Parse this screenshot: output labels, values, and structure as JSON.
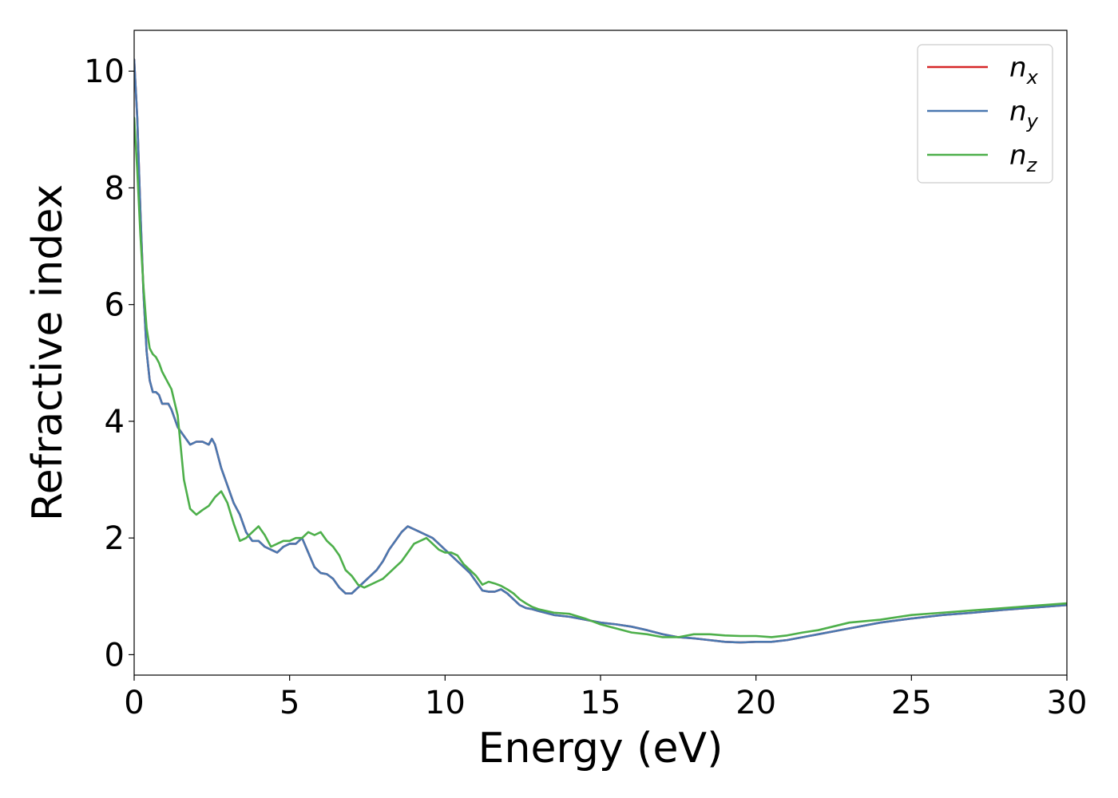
{
  "chart_data": {
    "type": "line",
    "xlabel": "Energy (eV)",
    "ylabel": "Refractive index",
    "xlim": [
      0,
      30
    ],
    "ylim": [
      -0.35,
      10.7
    ],
    "x_ticks": [
      0,
      5,
      10,
      15,
      20,
      25,
      30
    ],
    "y_ticks": [
      0,
      2,
      4,
      6,
      8,
      10
    ],
    "grid": false,
    "legend_position": "top-right",
    "series": [
      {
        "name": "n",
        "subscript": "x",
        "color": "#d62728",
        "x": [
          0,
          0.1,
          0.2,
          0.3,
          0.4,
          0.5,
          0.6,
          0.7,
          0.8,
          0.9,
          1.0,
          1.1,
          1.2,
          1.4,
          1.6,
          1.8,
          2.0,
          2.2,
          2.4,
          2.5,
          2.6,
          2.8,
          3.0,
          3.2,
          3.4,
          3.6,
          3.8,
          4.0,
          4.2,
          4.4,
          4.6,
          4.8,
          5.0,
          5.2,
          5.4,
          5.6,
          5.8,
          6.0,
          6.2,
          6.4,
          6.6,
          6.8,
          7.0,
          7.2,
          7.4,
          7.6,
          7.8,
          8.0,
          8.2,
          8.4,
          8.6,
          8.8,
          9.0,
          9.2,
          9.4,
          9.6,
          9.8,
          10.0,
          10.2,
          10.4,
          10.6,
          10.8,
          11.0,
          11.2,
          11.4,
          11.6,
          11.8,
          12.0,
          12.2,
          12.4,
          12.6,
          12.8,
          13.0,
          13.5,
          14.0,
          14.5,
          15.0,
          15.5,
          16.0,
          16.5,
          17.0,
          17.5,
          18.0,
          18.5,
          19.0,
          19.5,
          20.0,
          20.5,
          21.0,
          21.5,
          22.0,
          23.0,
          24.0,
          25.0,
          26.0,
          27.0,
          28.0,
          29.0,
          30.0
        ],
        "y": [
          10.2,
          9.2,
          7.6,
          6.2,
          5.2,
          4.7,
          4.5,
          4.5,
          4.45,
          4.3,
          4.3,
          4.3,
          4.2,
          3.9,
          3.75,
          3.6,
          3.65,
          3.65,
          3.6,
          3.7,
          3.6,
          3.2,
          2.9,
          2.6,
          2.4,
          2.1,
          1.95,
          1.95,
          1.85,
          1.8,
          1.75,
          1.85,
          1.9,
          1.9,
          2.0,
          1.75,
          1.5,
          1.4,
          1.38,
          1.3,
          1.15,
          1.05,
          1.05,
          1.15,
          1.25,
          1.35,
          1.45,
          1.6,
          1.8,
          1.95,
          2.1,
          2.2,
          2.15,
          2.1,
          2.05,
          2.0,
          1.9,
          1.8,
          1.7,
          1.6,
          1.5,
          1.4,
          1.25,
          1.1,
          1.08,
          1.08,
          1.12,
          1.05,
          0.95,
          0.85,
          0.8,
          0.78,
          0.75,
          0.68,
          0.65,
          0.6,
          0.55,
          0.52,
          0.48,
          0.42,
          0.35,
          0.3,
          0.28,
          0.25,
          0.22,
          0.21,
          0.22,
          0.22,
          0.25,
          0.3,
          0.35,
          0.45,
          0.55,
          0.62,
          0.68,
          0.72,
          0.77,
          0.81,
          0.85
        ]
      },
      {
        "name": "n",
        "subscript": "y",
        "color": "#4a78b0",
        "x": [
          0,
          0.1,
          0.2,
          0.3,
          0.4,
          0.5,
          0.6,
          0.7,
          0.8,
          0.9,
          1.0,
          1.1,
          1.2,
          1.4,
          1.6,
          1.8,
          2.0,
          2.2,
          2.4,
          2.5,
          2.6,
          2.8,
          3.0,
          3.2,
          3.4,
          3.6,
          3.8,
          4.0,
          4.2,
          4.4,
          4.6,
          4.8,
          5.0,
          5.2,
          5.4,
          5.6,
          5.8,
          6.0,
          6.2,
          6.4,
          6.6,
          6.8,
          7.0,
          7.2,
          7.4,
          7.6,
          7.8,
          8.0,
          8.2,
          8.4,
          8.6,
          8.8,
          9.0,
          9.2,
          9.4,
          9.6,
          9.8,
          10.0,
          10.2,
          10.4,
          10.6,
          10.8,
          11.0,
          11.2,
          11.4,
          11.6,
          11.8,
          12.0,
          12.2,
          12.4,
          12.6,
          12.8,
          13.0,
          13.5,
          14.0,
          14.5,
          15.0,
          15.5,
          16.0,
          16.5,
          17.0,
          17.5,
          18.0,
          18.5,
          19.0,
          19.5,
          20.0,
          20.5,
          21.0,
          21.5,
          22.0,
          23.0,
          24.0,
          25.0,
          26.0,
          27.0,
          28.0,
          29.0,
          30.0
        ],
        "y": [
          10.2,
          9.2,
          7.6,
          6.2,
          5.2,
          4.7,
          4.5,
          4.5,
          4.45,
          4.3,
          4.3,
          4.3,
          4.2,
          3.9,
          3.75,
          3.6,
          3.65,
          3.65,
          3.6,
          3.7,
          3.6,
          3.2,
          2.9,
          2.6,
          2.4,
          2.1,
          1.95,
          1.95,
          1.85,
          1.8,
          1.75,
          1.85,
          1.9,
          1.9,
          2.0,
          1.75,
          1.5,
          1.4,
          1.38,
          1.3,
          1.15,
          1.05,
          1.05,
          1.15,
          1.25,
          1.35,
          1.45,
          1.6,
          1.8,
          1.95,
          2.1,
          2.2,
          2.15,
          2.1,
          2.05,
          2.0,
          1.9,
          1.8,
          1.7,
          1.6,
          1.5,
          1.4,
          1.25,
          1.1,
          1.08,
          1.08,
          1.12,
          1.05,
          0.95,
          0.85,
          0.8,
          0.78,
          0.75,
          0.68,
          0.65,
          0.6,
          0.55,
          0.52,
          0.48,
          0.42,
          0.35,
          0.3,
          0.28,
          0.25,
          0.22,
          0.21,
          0.22,
          0.22,
          0.25,
          0.3,
          0.35,
          0.45,
          0.55,
          0.62,
          0.68,
          0.72,
          0.77,
          0.81,
          0.85
        ]
      },
      {
        "name": "n",
        "subscript": "z",
        "color": "#4daf4a",
        "x": [
          0,
          0.1,
          0.2,
          0.3,
          0.4,
          0.5,
          0.6,
          0.7,
          0.8,
          0.9,
          1.0,
          1.2,
          1.4,
          1.6,
          1.8,
          2.0,
          2.2,
          2.4,
          2.6,
          2.8,
          3.0,
          3.2,
          3.4,
          3.6,
          3.8,
          4.0,
          4.2,
          4.4,
          4.6,
          4.8,
          5.0,
          5.2,
          5.4,
          5.6,
          5.8,
          6.0,
          6.2,
          6.4,
          6.6,
          6.8,
          7.0,
          7.2,
          7.4,
          7.6,
          7.8,
          8.0,
          8.2,
          8.4,
          8.6,
          8.8,
          9.0,
          9.2,
          9.4,
          9.6,
          9.8,
          10.0,
          10.2,
          10.4,
          10.6,
          10.8,
          11.0,
          11.2,
          11.4,
          11.6,
          11.8,
          12.0,
          12.2,
          12.4,
          12.6,
          12.8,
          13.0,
          13.5,
          14.0,
          14.5,
          15.0,
          15.5,
          16.0,
          16.5,
          17.0,
          17.5,
          18.0,
          18.5,
          19.0,
          19.5,
          20.0,
          20.5,
          21.0,
          21.5,
          22.0,
          23.0,
          24.0,
          25.0,
          26.0,
          27.0,
          28.0,
          29.0,
          30.0
        ],
        "y": [
          9.2,
          8.3,
          7.2,
          6.3,
          5.6,
          5.25,
          5.15,
          5.1,
          5.0,
          4.85,
          4.75,
          4.55,
          4.1,
          3.0,
          2.5,
          2.4,
          2.48,
          2.55,
          2.7,
          2.8,
          2.6,
          2.25,
          1.95,
          2.0,
          2.1,
          2.2,
          2.05,
          1.85,
          1.9,
          1.95,
          1.95,
          2.0,
          2.0,
          2.1,
          2.05,
          2.1,
          1.95,
          1.85,
          1.7,
          1.45,
          1.35,
          1.2,
          1.15,
          1.2,
          1.25,
          1.3,
          1.4,
          1.5,
          1.6,
          1.75,
          1.9,
          1.95,
          2.0,
          1.9,
          1.8,
          1.75,
          1.75,
          1.7,
          1.55,
          1.45,
          1.35,
          1.2,
          1.25,
          1.22,
          1.18,
          1.12,
          1.05,
          0.95,
          0.88,
          0.82,
          0.78,
          0.72,
          0.7,
          0.62,
          0.52,
          0.45,
          0.38,
          0.35,
          0.3,
          0.3,
          0.35,
          0.35,
          0.33,
          0.32,
          0.32,
          0.3,
          0.33,
          0.38,
          0.42,
          0.55,
          0.6,
          0.68,
          0.72,
          0.76,
          0.8,
          0.84,
          0.88
        ]
      }
    ]
  }
}
